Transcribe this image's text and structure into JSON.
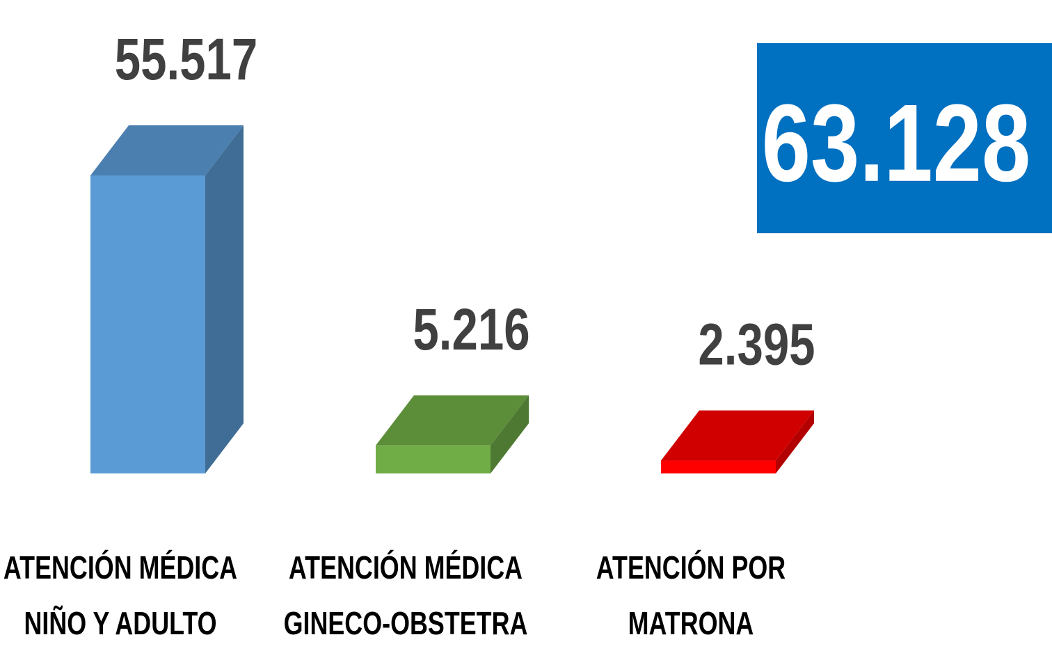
{
  "chart_data": {
    "type": "bar3d",
    "categories": [
      "ATENCIÓN MÉDICA\nNIÑO Y ADULTO",
      "ATENCIÓN MÉDICA\nGINECO-OBSTETRA",
      "ATENCIÓN POR\nMATRONA"
    ],
    "values": [
      55517,
      5216,
      2395
    ],
    "value_labels": [
      "55.517",
      "5.216",
      "2.395"
    ],
    "colors": [
      "#5b9bd5",
      "#70ad47",
      "#ff0000"
    ],
    "annotation": "63.128"
  }
}
